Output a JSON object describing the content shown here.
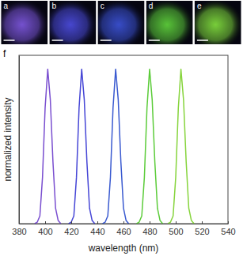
{
  "figure": {
    "panels": [
      {
        "label": "a",
        "color": "#7a55d8"
      },
      {
        "label": "b",
        "color": "#4a4ad8"
      },
      {
        "label": "c",
        "color": "#3a50d0"
      },
      {
        "label": "d",
        "color": "#5ccc3a"
      },
      {
        "label": "e",
        "color": "#7ed83c"
      }
    ]
  },
  "chart_data": {
    "type": "line",
    "label": "f",
    "x_label": "wavelength (nm)",
    "y_label": "normalized intensity",
    "xlim": [
      380,
      540
    ],
    "xticks": [
      380,
      400,
      420,
      440,
      460,
      480,
      500,
      520,
      540
    ],
    "ylim": [
      0,
      1.09
    ],
    "yticks": [],
    "tick_labels": "x",
    "series": [
      {
        "color": "#7a4fd0",
        "x": [
          392,
          394,
          396,
          398,
          400,
          402,
          404,
          406,
          408,
          410,
          412
        ],
        "values": [
          0,
          0.01,
          0.05,
          0.3,
          0.75,
          1,
          0.8,
          0.4,
          0.1,
          0.02,
          0
        ]
      },
      {
        "color": "#4646d6",
        "x": [
          418,
          420,
          422,
          424,
          426,
          428,
          430,
          432,
          434,
          436,
          438
        ],
        "values": [
          0,
          0.01,
          0.05,
          0.3,
          0.75,
          1,
          0.8,
          0.4,
          0.1,
          0.02,
          0
        ]
      },
      {
        "color": "#3a5ad0",
        "x": [
          444,
          446,
          448,
          450,
          452,
          454,
          456,
          458,
          460,
          462,
          464
        ],
        "values": [
          0,
          0.01,
          0.05,
          0.3,
          0.75,
          1,
          0.8,
          0.4,
          0.1,
          0.02,
          0
        ]
      },
      {
        "color": "#5ccc3a",
        "x": [
          470,
          472,
          474,
          476,
          478,
          480,
          482,
          484,
          486,
          488,
          490
        ],
        "values": [
          0,
          0.01,
          0.05,
          0.3,
          0.75,
          1,
          0.8,
          0.4,
          0.1,
          0.02,
          0
        ]
      },
      {
        "color": "#86d43c",
        "x": [
          494,
          496,
          498,
          500,
          502,
          504,
          506,
          508,
          510,
          512,
          514
        ],
        "values": [
          0,
          0.01,
          0.05,
          0.3,
          0.75,
          1,
          0.8,
          0.4,
          0.1,
          0.02,
          0
        ]
      }
    ]
  }
}
